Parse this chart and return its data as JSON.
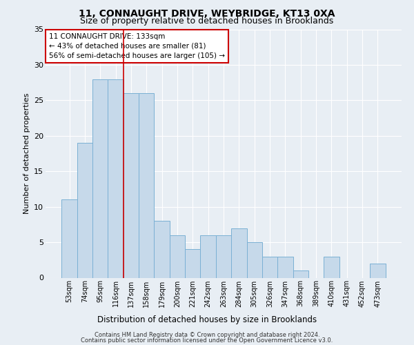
{
  "title1": "11, CONNAUGHT DRIVE, WEYBRIDGE, KT13 0XA",
  "title2": "Size of property relative to detached houses in Brooklands",
  "xlabel": "Distribution of detached houses by size in Brooklands",
  "ylabel": "Number of detached properties",
  "categories": [
    "53sqm",
    "74sqm",
    "95sqm",
    "116sqm",
    "137sqm",
    "158sqm",
    "179sqm",
    "200sqm",
    "221sqm",
    "242sqm",
    "263sqm",
    "284sqm",
    "305sqm",
    "326sqm",
    "347sqm",
    "368sqm",
    "389sqm",
    "410sqm",
    "431sqm",
    "452sqm",
    "473sqm"
  ],
  "values": [
    11,
    19,
    28,
    28,
    26,
    26,
    8,
    6,
    4,
    6,
    6,
    7,
    5,
    3,
    3,
    1,
    0,
    3,
    0,
    0,
    2
  ],
  "bar_color": "#c6d9ea",
  "bar_edge_color": "#7ab0d4",
  "red_line_color": "#cc0000",
  "red_line_x": 3.5,
  "annotation_line1": "11 CONNAUGHT DRIVE: 133sqm",
  "annotation_line2": "← 43% of detached houses are smaller (81)",
  "annotation_line3": "56% of semi-detached houses are larger (105) →",
  "annotation_box_facecolor": "#ffffff",
  "annotation_box_edgecolor": "#cc0000",
  "ylim": [
    0,
    35
  ],
  "yticks": [
    0,
    5,
    10,
    15,
    20,
    25,
    30,
    35
  ],
  "footer1": "Contains HM Land Registry data © Crown copyright and database right 2024.",
  "footer2": "Contains public sector information licensed under the Open Government Licence v3.0.",
  "bg_color": "#e8eef4",
  "grid_color": "#ffffff",
  "title1_fontsize": 10,
  "title2_fontsize": 9,
  "xlabel_fontsize": 8.5,
  "ylabel_fontsize": 8,
  "tick_fontsize": 7,
  "footer_fontsize": 6,
  "annot_fontsize": 7.5
}
